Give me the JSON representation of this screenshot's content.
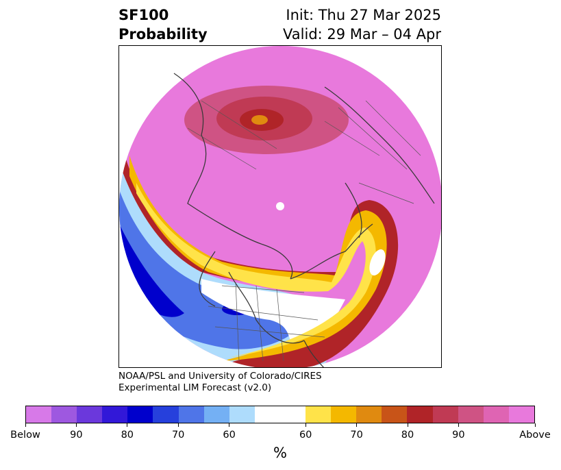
{
  "title": {
    "left_line1": "SF100",
    "left_line2": "Probability",
    "right_line1": "Init: Thu 27 Mar 2025",
    "right_line2": "Valid: 29 Mar – 04 Apr"
  },
  "credit": {
    "line1": "NOAA/PSL and University of Colorado/CIRES",
    "line2": "Experimental LIM Forecast (v2.0)"
  },
  "colorbar": {
    "unit": "%",
    "colors": [
      "#d779e8",
      "#9e58e0",
      "#6b38dc",
      "#3218d8",
      "#0000cc",
      "#2640dc",
      "#4f75e8",
      "#74b0f4",
      "#aedcfc",
      "#ffffff",
      "#ffffff",
      "#ffe349",
      "#f4b800",
      "#e08a10",
      "#c85418",
      "#b02428",
      "#c03a54",
      "#cf5384",
      "#df64b3",
      "#e879dc"
    ],
    "labels": [
      "Below",
      "90",
      "80",
      "70",
      "60",
      "60",
      "70",
      "80",
      "90",
      "Above"
    ]
  },
  "map": {
    "projection": "north-polar-stereographic",
    "background_color": "#e879dc",
    "anomaly_colors": {
      "strong_above": "#b02428",
      "above": "#c03a54",
      "moderate_above": "#cf5384",
      "warm_yellow": "#ffe349",
      "warm_orange": "#f4b800",
      "cold_light": "#aedcfc",
      "cold_mid": "#4f75e8",
      "cold_deep": "#0000cc"
    }
  }
}
